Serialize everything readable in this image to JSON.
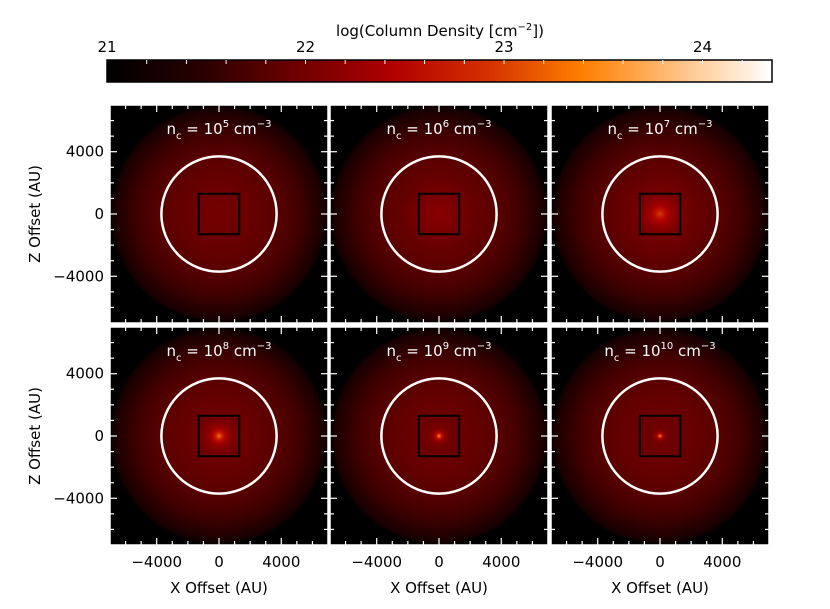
{
  "chart_data": {
    "type": "heatmap",
    "colorbar": {
      "label": "log(Column Density [cm",
      "label_exp": "−2",
      "label_close": "])",
      "min": 21,
      "max": 24.35,
      "ticks": [
        21,
        22,
        23,
        24
      ],
      "tick_labels": [
        "21",
        "22",
        "23",
        "24"
      ],
      "colors": [
        "#000000",
        "#2a0000",
        "#6e0000",
        "#b00000",
        "#d43000",
        "#ff7f00",
        "#ffc080",
        "#ffffff"
      ]
    },
    "xlabel": "X Offset (AU)",
    "ylabel": "Z Offset (AU)",
    "xlim": [
      -7000,
      7000
    ],
    "ylim": [
      -7000,
      7000
    ],
    "x_ticks": [
      -4000,
      0,
      4000
    ],
    "x_tick_labels": [
      "−4000",
      "0",
      "4000"
    ],
    "y_ticks": [
      4000,
      0,
      -4000
    ],
    "y_tick_labels": [
      "4000",
      "0",
      "−4000"
    ],
    "circle_radius": 3700,
    "box_half_width": 1300,
    "cloud_radius": 7000,
    "panels": [
      {
        "label_base": "n",
        "label_sub": "c",
        "label_mid": " = 10",
        "label_exp": "5",
        "label_unit": " cm",
        "label_unit_exp": "−3",
        "peak_log": 22.0,
        "core_scale": 0
      },
      {
        "label_base": "n",
        "label_sub": "c",
        "label_mid": " = 10",
        "label_exp": "6",
        "label_unit": " cm",
        "label_unit_exp": "−3",
        "peak_log": 22.15,
        "core_scale": 0
      },
      {
        "label_base": "n",
        "label_sub": "c",
        "label_mid": " = 10",
        "label_exp": "7",
        "label_unit": " cm",
        "label_unit_exp": "−3",
        "peak_log": 23.0,
        "core_scale": 600
      },
      {
        "label_base": "n",
        "label_sub": "c",
        "label_mid": " = 10",
        "label_exp": "8",
        "label_unit": " cm",
        "label_unit_exp": "−3",
        "peak_log": 23.35,
        "core_scale": 380
      },
      {
        "label_base": "n",
        "label_sub": "c",
        "label_mid": " = 10",
        "label_exp": "9",
        "label_unit": " cm",
        "label_unit_exp": "−3",
        "peak_log": 23.45,
        "core_scale": 200
      },
      {
        "label_base": "n",
        "label_sub": "c",
        "label_mid": " = 10",
        "label_exp": "10",
        "label_unit": " cm",
        "label_unit_exp": "−3",
        "peak_log": 23.4,
        "core_scale": 140
      }
    ]
  }
}
